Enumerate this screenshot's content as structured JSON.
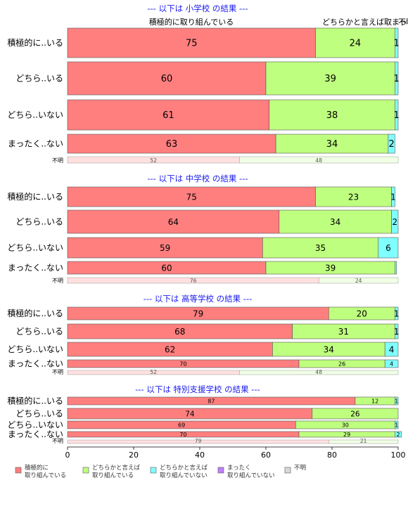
{
  "chart_data": {
    "type": "bar",
    "stacked": true,
    "orientation": "horizontal",
    "xlim": [
      0,
      100
    ],
    "x_ticks": [
      "0",
      "20",
      "40",
      "60",
      "80",
      "100"
    ],
    "colors": [
      "#ff7f7f",
      "#bfff7f",
      "#7fffff",
      "#bf7fff",
      "#d9d9d9"
    ],
    "header_labels": {
      "col1": "積極的に取り組んでいる",
      "col2": "どちらかと言えば取",
      "col3": "まっ",
      "col4": "不明"
    },
    "legend": [
      {
        "label": "積極的に\n取り組んでいる",
        "color": "#ff7f7f"
      },
      {
        "label": "どちらかと言えば\n取り組んでいる",
        "color": "#bfff7f"
      },
      {
        "label": "どちらかと言えば\n取り組んでいない",
        "color": "#7fffff"
      },
      {
        "label": "まったく\n取り組んでいない",
        "color": "#bf7fff"
      },
      {
        "label": "不明",
        "color": "#d9d9d9"
      }
    ],
    "panels": [
      {
        "title": "--- 以下は 小学校 の結果 ---",
        "categories": [
          "積極的に..いる",
          "どちら..いる",
          "どちら..いない",
          "まったく..ない"
        ],
        "series": [
          {
            "name": "積極的に取り組んでいる",
            "values": [
              75,
              60,
              61,
              63
            ]
          },
          {
            "name": "どちらかと言えば取り組んでいる",
            "values": [
              24,
              39,
              38,
              34
            ]
          },
          {
            "name": "どちらかと言えば取り組んでいない",
            "values": [
              1,
              1,
              1,
              2
            ]
          },
          {
            "name": "まったく取り組んでいない",
            "values": [
              0,
              0,
              0,
              0
            ]
          },
          {
            "name": "不明",
            "values": [
              0,
              0,
              0,
              0
            ]
          }
        ],
        "unknown": {
          "label": "不明",
          "values": [
            52,
            48
          ]
        }
      },
      {
        "title": "--- 以下は 中学校 の結果 ---",
        "categories": [
          "積極的に..いる",
          "どちら..いる",
          "どちら..いない",
          "まったく..ない"
        ],
        "series": [
          {
            "name": "積極的に取り組んでいる",
            "values": [
              75,
              64,
              59,
              60
            ]
          },
          {
            "name": "どちらかと言えば取り組んでいる",
            "values": [
              23,
              34,
              35,
              39
            ]
          },
          {
            "name": "どちらかと言えば取り組んでいない",
            "values": [
              1,
              2,
              6,
              0.5
            ]
          },
          {
            "name": "まったく取り組んでいない",
            "values": [
              0,
              0,
              0,
              0
            ]
          },
          {
            "name": "不明",
            "values": [
              0,
              0,
              0,
              0
            ]
          }
        ],
        "unknown": {
          "label": "不明",
          "values": [
            76,
            24
          ]
        }
      },
      {
        "title": "--- 以下は 高等学校 の結果 ---",
        "categories": [
          "積極的に..いる",
          "どちら..いる",
          "どちら..いない",
          "まったく..ない"
        ],
        "series": [
          {
            "name": "積極的に取り組んでいる",
            "values": [
              79,
              68,
              62,
              70
            ]
          },
          {
            "name": "どちらかと言えば取り組んでいる",
            "values": [
              20,
              31,
              34,
              26
            ]
          },
          {
            "name": "どちらかと言えば取り組んでいない",
            "values": [
              1,
              1,
              4,
              4
            ]
          },
          {
            "name": "まったく取り組んでいない",
            "values": [
              0,
              0,
              0,
              0
            ]
          },
          {
            "name": "不明",
            "values": [
              0,
              0,
              0,
              0
            ]
          }
        ],
        "unknown": {
          "label": "不明",
          "values": [
            52,
            48
          ]
        }
      },
      {
        "title": "--- 以下は 特別支援学校 の結果 ---",
        "categories": [
          "積極的に..いる",
          "どちら..いる",
          "どちら..いない",
          "まったく..ない"
        ],
        "series": [
          {
            "name": "積極的に取り組んでいる",
            "values": [
              87,
              74,
              69,
              70
            ]
          },
          {
            "name": "どちらかと言えば取り組んでいる",
            "values": [
              12,
              26,
              30,
              29
            ]
          },
          {
            "name": "どちらかと言えば取り組んでいない",
            "values": [
              1,
              0,
              1,
              2
            ]
          },
          {
            "name": "まったく取り組んでいない",
            "values": [
              0,
              0,
              0,
              0
            ]
          },
          {
            "name": "不明",
            "values": [
              0,
              0,
              0,
              0
            ]
          }
        ],
        "unknown": {
          "label": "不明",
          "values": [
            79,
            21
          ]
        }
      }
    ]
  }
}
